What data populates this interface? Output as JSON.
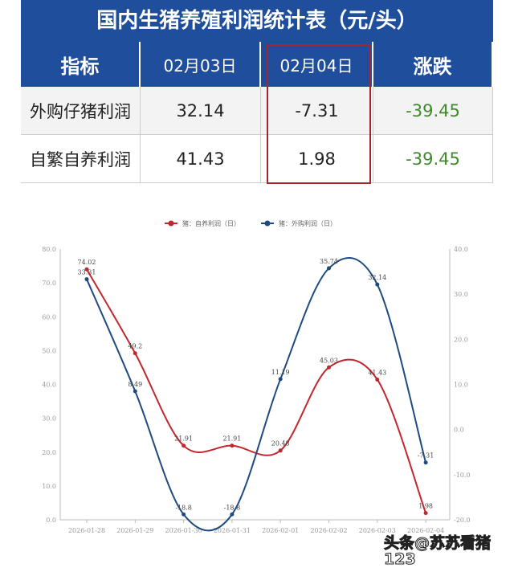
{
  "table": {
    "title": "国内生猪养殖利润统计表（元/头）",
    "headers": [
      "指标",
      "02月03日",
      "02月04日",
      "涨跌"
    ],
    "rows": [
      {
        "label": "外购仔猪利润",
        "d1": "32.14",
        "d2": "-7.31",
        "change": "-39.45"
      },
      {
        "label": "自繁自养利润",
        "d1": "41.43",
        "d2": "1.98",
        "change": "-39.45"
      }
    ]
  },
  "chart_data": {
    "type": "line",
    "x": [
      "2026-01-28",
      "2026-01-29",
      "2026-01-30",
      "2026-01-31",
      "2026-02-01",
      "2026-02-02",
      "2026-02-03",
      "2026-02-04"
    ],
    "series": [
      {
        "name": "猪：自养利润（日）",
        "axis": "left",
        "color": "#c0282d",
        "values": [
          74.02,
          49.2,
          21.91,
          21.91,
          20.48,
          45.03,
          41.43,
          1.98
        ]
      },
      {
        "name": "猪：外购利润（日）",
        "axis": "right",
        "color": "#1f4a80",
        "values": [
          33.31,
          8.49,
          -18.8,
          -18.8,
          11.19,
          35.74,
          32.14,
          -7.31
        ]
      }
    ],
    "ylim_left": [
      0,
      80
    ],
    "yticks_left": [
      "0.0",
      "10.0",
      "20.0",
      "30.0",
      "40.0",
      "50.0",
      "60.0",
      "70.0",
      "80.0"
    ],
    "ylim_right": [
      -20,
      40
    ],
    "yticks_right": [
      "-20.0",
      "-10.0",
      "0.0",
      "10.0",
      "20.0",
      "30.0",
      "40.0"
    ],
    "legend": "top"
  },
  "watermark": "头条@苏苏看猪123"
}
